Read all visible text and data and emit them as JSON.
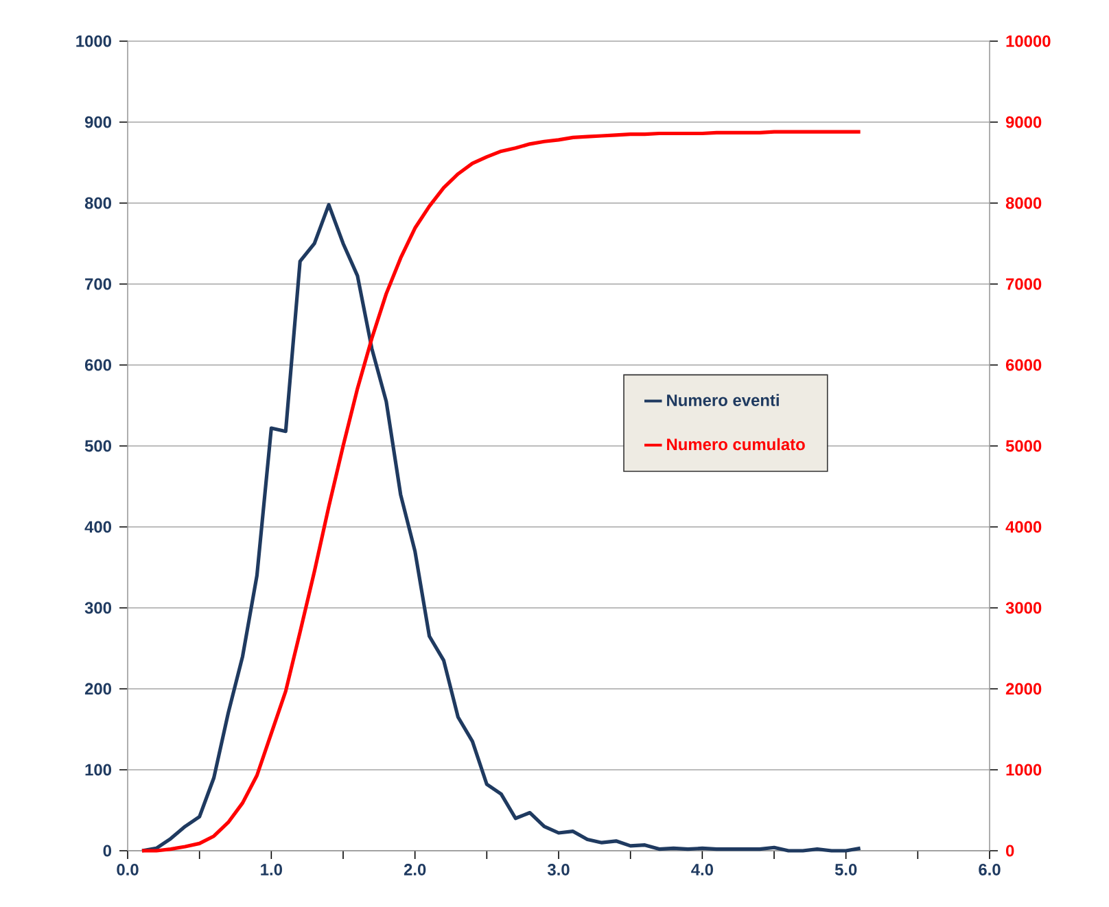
{
  "chart_data": {
    "type": "line",
    "x": [
      0.1,
      0.2,
      0.3,
      0.4,
      0.5,
      0.6,
      0.7,
      0.8,
      0.9,
      1.0,
      1.1,
      1.2,
      1.3,
      1.4,
      1.5,
      1.6,
      1.7,
      1.8,
      1.9,
      2.0,
      2.1,
      2.2,
      2.3,
      2.4,
      2.5,
      2.6,
      2.7,
      2.8,
      2.9,
      3.0,
      3.1,
      3.2,
      3.3,
      3.4,
      3.5,
      3.6,
      3.7,
      3.8,
      3.9,
      4.0,
      4.1,
      4.2,
      4.3,
      4.4,
      4.5,
      4.6,
      4.7,
      4.8,
      4.9,
      5.0,
      5.1
    ],
    "series": [
      {
        "name": "Numero eventi",
        "color": "#1f3a60",
        "values": [
          0,
          3,
          15,
          30,
          42,
          90,
          170,
          240,
          340,
          522,
          518,
          728,
          750,
          798,
          750,
          710,
          620,
          555,
          440,
          370,
          265,
          235,
          165,
          135,
          82,
          70,
          40,
          47,
          30,
          22,
          24,
          14,
          10,
          12,
          6,
          7,
          2,
          3,
          2,
          3,
          2,
          2,
          2,
          2,
          4,
          0,
          0,
          2,
          0,
          0,
          3
        ]
      },
      {
        "name": "Numero cumulato",
        "color": "#ff0000",
        "axis": "y2",
        "values": [
          0,
          0,
          20,
          50,
          90,
          180,
          350,
          590,
          930,
          1450,
          1970,
          2700,
          3450,
          4250,
          5000,
          5710,
          6330,
          6880,
          7320,
          7690,
          7960,
          8190,
          8360,
          8490,
          8570,
          8640,
          8680,
          8730,
          8760,
          8780,
          8810,
          8820,
          8830,
          8840,
          8850,
          8850,
          8860,
          8860,
          8860,
          8860,
          8870,
          8870,
          8870,
          8870,
          8880,
          8880,
          8880,
          8880,
          8880,
          8880,
          8880
        ]
      }
    ],
    "xlim": [
      0,
      6
    ],
    "xticks": [
      {
        "value": 0,
        "label": "0.0"
      },
      {
        "value": 0.5,
        "label": null
      },
      {
        "value": 1,
        "label": "1.0"
      },
      {
        "value": 1.5,
        "label": null
      },
      {
        "value": 2,
        "label": "2.0"
      },
      {
        "value": 2.5,
        "label": null
      },
      {
        "value": 3,
        "label": "3.0"
      },
      {
        "value": 3.5,
        "label": null
      },
      {
        "value": 4,
        "label": "4.0"
      },
      {
        "value": 4.5,
        "label": null
      },
      {
        "value": 5,
        "label": "5.0"
      },
      {
        "value": 5.5,
        "label": null
      },
      {
        "value": 6,
        "label": "6.0"
      }
    ],
    "ylim": [
      0,
      1000
    ],
    "yticks": [
      0,
      100,
      200,
      300,
      400,
      500,
      600,
      700,
      800,
      900,
      1000
    ],
    "y2lim": [
      0,
      10000
    ],
    "y2ticks": [
      0,
      1000,
      2000,
      3000,
      4000,
      5000,
      6000,
      7000,
      8000,
      9000,
      10000
    ],
    "grid": "y",
    "legend": "right",
    "marker": "none",
    "line_style": "solid"
  }
}
